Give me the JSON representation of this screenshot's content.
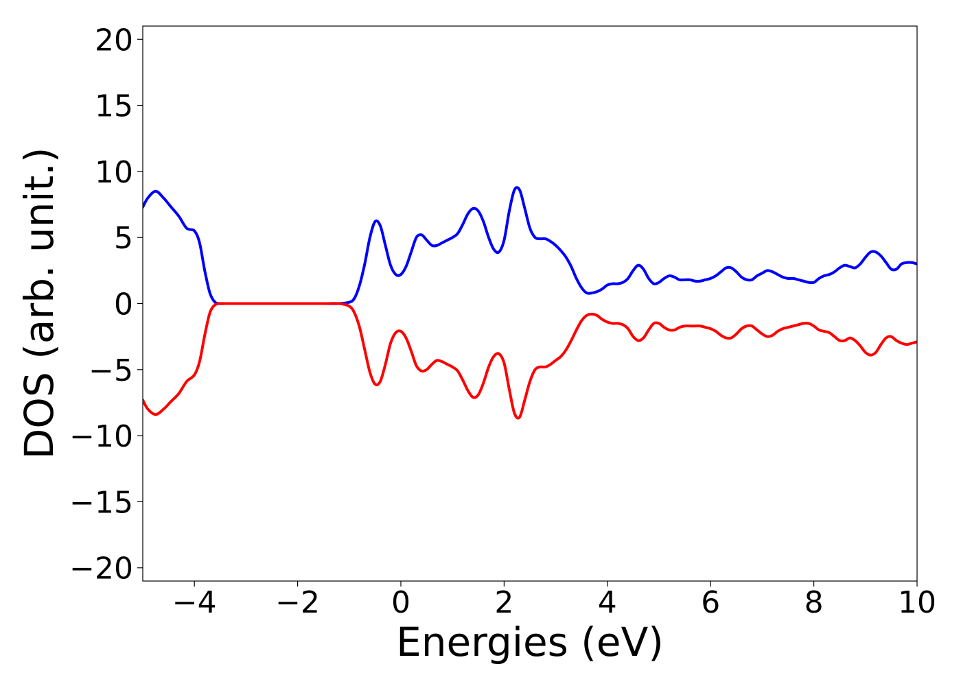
{
  "chart_data": {
    "type": "line",
    "title": "",
    "xlabel": "Energies (eV)",
    "ylabel": "DOS (arb. unit.)",
    "xlim": [
      -5,
      10
    ],
    "ylim": [
      -21,
      21
    ],
    "x_ticks": [
      -4,
      -2,
      0,
      2,
      4,
      6,
      8,
      10
    ],
    "x_tick_labels": [
      "−4",
      "−2",
      "0",
      "2",
      "4",
      "6",
      "8",
      "10"
    ],
    "y_ticks": [
      20,
      15,
      10,
      5,
      0,
      -5,
      -10,
      -15,
      -20
    ],
    "y_tick_labels": [
      "20",
      "15",
      "10",
      "5",
      "0",
      "−5",
      "−10",
      "−15",
      "−20"
    ],
    "grid": false,
    "legend": "none",
    "series": [
      {
        "color": "#0000ff",
        "x": [
          -5.0,
          -4.9,
          -4.75,
          -4.6,
          -4.45,
          -4.3,
          -4.15,
          -4.0,
          -3.9,
          -3.8,
          -3.7,
          -3.6,
          -3.5,
          -3.4,
          -3.2,
          -3.0,
          -2.5,
          -2.0,
          -1.5,
          -1.2,
          -1.0,
          -0.9,
          -0.8,
          -0.7,
          -0.6,
          -0.5,
          -0.4,
          -0.3,
          -0.2,
          -0.1,
          0.0,
          0.1,
          0.2,
          0.3,
          0.4,
          0.5,
          0.6,
          0.7,
          0.8,
          0.9,
          1.0,
          1.1,
          1.2,
          1.3,
          1.4,
          1.5,
          1.6,
          1.7,
          1.8,
          1.9,
          2.0,
          2.1,
          2.2,
          2.3,
          2.4,
          2.5,
          2.6,
          2.7,
          2.8,
          2.9,
          3.0,
          3.1,
          3.2,
          3.3,
          3.4,
          3.5,
          3.6,
          3.7,
          3.8,
          3.9,
          4.0,
          4.1,
          4.2,
          4.3,
          4.4,
          4.5,
          4.6,
          4.7,
          4.8,
          4.9,
          5.0,
          5.1,
          5.2,
          5.3,
          5.4,
          5.5,
          5.6,
          5.7,
          5.8,
          5.9,
          6.0,
          6.1,
          6.2,
          6.3,
          6.4,
          6.5,
          6.6,
          6.7,
          6.8,
          6.9,
          7.0,
          7.1,
          7.2,
          7.3,
          7.4,
          7.5,
          7.6,
          7.7,
          7.8,
          7.9,
          8.0,
          8.1,
          8.2,
          8.3,
          8.4,
          8.5,
          8.6,
          8.7,
          8.8,
          8.9,
          9.0,
          9.1,
          9.2,
          9.3,
          9.4,
          9.5,
          9.6,
          9.7,
          9.8,
          9.9,
          10.0
        ],
        "y": [
          7.3,
          8.0,
          8.5,
          8.0,
          7.3,
          6.6,
          5.7,
          5.5,
          4.6,
          2.5,
          0.8,
          0.1,
          0.0,
          0.0,
          0.0,
          0.0,
          0.0,
          0.0,
          0.0,
          0.0,
          0.1,
          0.4,
          1.4,
          3.0,
          5.0,
          6.2,
          5.9,
          4.4,
          2.9,
          2.2,
          2.2,
          2.8,
          3.9,
          5.0,
          5.2,
          4.8,
          4.4,
          4.4,
          4.6,
          4.8,
          5.0,
          5.3,
          6.0,
          6.8,
          7.2,
          7.0,
          6.2,
          5.0,
          4.1,
          3.9,
          4.8,
          7.0,
          8.6,
          8.6,
          7.2,
          5.7,
          5.0,
          4.9,
          4.9,
          4.7,
          4.4,
          4.0,
          3.5,
          2.8,
          1.9,
          1.2,
          0.8,
          0.8,
          0.9,
          1.1,
          1.4,
          1.5,
          1.5,
          1.6,
          1.9,
          2.5,
          2.9,
          2.6,
          1.9,
          1.5,
          1.6,
          1.9,
          2.1,
          2.0,
          1.8,
          1.8,
          1.8,
          1.7,
          1.7,
          1.8,
          1.9,
          2.1,
          2.4,
          2.7,
          2.7,
          2.4,
          2.0,
          1.8,
          1.8,
          2.1,
          2.3,
          2.5,
          2.4,
          2.2,
          2.0,
          1.9,
          1.9,
          1.8,
          1.7,
          1.6,
          1.6,
          1.9,
          2.1,
          2.2,
          2.4,
          2.7,
          2.9,
          2.8,
          2.7,
          3.0,
          3.5,
          3.9,
          3.9,
          3.6,
          3.1,
          2.6,
          2.6,
          3.0,
          3.1,
          3.1,
          3.0
        ]
      },
      {
        "color": "#ff0000",
        "x": [
          -5.0,
          -4.9,
          -4.75,
          -4.6,
          -4.45,
          -4.3,
          -4.15,
          -4.0,
          -3.9,
          -3.8,
          -3.7,
          -3.6,
          -3.5,
          -3.4,
          -3.2,
          -3.0,
          -2.5,
          -2.0,
          -1.5,
          -1.2,
          -1.0,
          -0.9,
          -0.8,
          -0.7,
          -0.6,
          -0.5,
          -0.4,
          -0.3,
          -0.2,
          -0.1,
          0.0,
          0.1,
          0.2,
          0.3,
          0.4,
          0.5,
          0.6,
          0.7,
          0.8,
          0.9,
          1.0,
          1.1,
          1.2,
          1.3,
          1.4,
          1.5,
          1.6,
          1.7,
          1.8,
          1.9,
          2.0,
          2.1,
          2.2,
          2.3,
          2.4,
          2.5,
          2.6,
          2.7,
          2.8,
          2.9,
          3.0,
          3.1,
          3.2,
          3.3,
          3.4,
          3.5,
          3.6,
          3.7,
          3.8,
          3.9,
          4.0,
          4.1,
          4.2,
          4.3,
          4.4,
          4.5,
          4.6,
          4.7,
          4.8,
          4.9,
          5.0,
          5.1,
          5.2,
          5.3,
          5.4,
          5.5,
          5.6,
          5.7,
          5.8,
          5.9,
          6.0,
          6.1,
          6.2,
          6.3,
          6.4,
          6.5,
          6.6,
          6.7,
          6.8,
          6.9,
          7.0,
          7.1,
          7.2,
          7.3,
          7.4,
          7.5,
          7.6,
          7.7,
          7.8,
          7.9,
          8.0,
          8.1,
          8.2,
          8.3,
          8.4,
          8.5,
          8.6,
          8.7,
          8.8,
          8.9,
          9.0,
          9.1,
          9.2,
          9.3,
          9.4,
          9.5,
          9.6,
          9.7,
          9.8,
          9.9,
          10.0
        ],
        "y": [
          -7.3,
          -8.0,
          -8.4,
          -8.0,
          -7.4,
          -6.8,
          -5.9,
          -5.4,
          -4.4,
          -2.4,
          -0.7,
          -0.1,
          0.0,
          0.0,
          0.0,
          0.0,
          0.0,
          0.0,
          0.0,
          0.0,
          -0.2,
          -0.7,
          -1.8,
          -3.5,
          -5.2,
          -6.1,
          -5.9,
          -4.6,
          -3.0,
          -2.2,
          -2.1,
          -2.6,
          -3.6,
          -4.7,
          -5.1,
          -5.0,
          -4.6,
          -4.3,
          -4.4,
          -4.6,
          -4.8,
          -5.1,
          -5.8,
          -6.6,
          -7.1,
          -6.9,
          -6.0,
          -4.8,
          -4.0,
          -3.8,
          -4.5,
          -6.5,
          -8.3,
          -8.6,
          -7.3,
          -5.9,
          -5.0,
          -4.8,
          -4.8,
          -4.6,
          -4.3,
          -4.0,
          -3.5,
          -2.8,
          -2.0,
          -1.3,
          -0.9,
          -0.8,
          -0.9,
          -1.2,
          -1.4,
          -1.5,
          -1.5,
          -1.6,
          -1.9,
          -2.5,
          -2.8,
          -2.6,
          -2.0,
          -1.5,
          -1.5,
          -1.8,
          -2.0,
          -2.0,
          -1.8,
          -1.7,
          -1.7,
          -1.7,
          -1.7,
          -1.8,
          -1.9,
          -2.1,
          -2.4,
          -2.6,
          -2.6,
          -2.3,
          -1.9,
          -1.7,
          -1.7,
          -2.0,
          -2.3,
          -2.5,
          -2.4,
          -2.1,
          -1.9,
          -1.8,
          -1.7,
          -1.6,
          -1.5,
          -1.5,
          -1.7,
          -2.0,
          -2.1,
          -2.2,
          -2.5,
          -2.8,
          -2.8,
          -2.6,
          -2.8,
          -3.2,
          -3.7,
          -3.9,
          -3.7,
          -3.1,
          -2.6,
          -2.5,
          -2.8,
          -3.0,
          -3.1,
          -3.0,
          -2.9
        ]
      }
    ]
  }
}
